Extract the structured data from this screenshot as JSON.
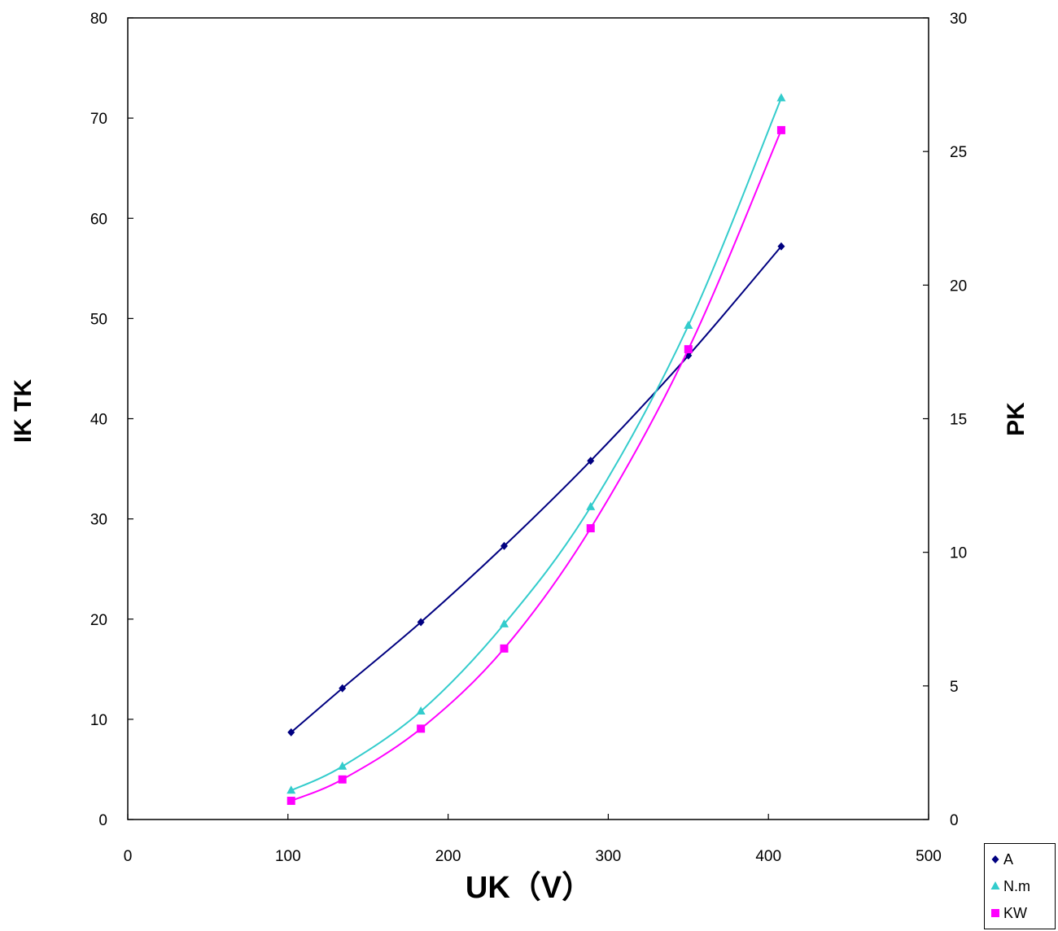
{
  "chart_data": {
    "type": "line",
    "xlabel": "UK（V）",
    "ylabel_left": "IK TK",
    "ylabel_right": "PK",
    "xlim": [
      0,
      500
    ],
    "xticks": [
      "0",
      "100",
      "200",
      "300",
      "400",
      "500"
    ],
    "ylim_left": [
      0,
      80
    ],
    "yticks_left": [
      "0",
      "10",
      "20",
      "30",
      "40",
      "50",
      "60",
      "70",
      "80"
    ],
    "ylim_right": [
      0,
      30
    ],
    "yticks_right": [
      "0",
      "5",
      "10",
      "15",
      "20",
      "25",
      "30"
    ],
    "grid": false,
    "legend_position": "bottom-right",
    "series": [
      {
        "name": "A",
        "axis": "left",
        "marker": "diamond",
        "color": "#000080",
        "x": [
          102,
          134,
          183,
          235,
          289,
          350,
          408
        ],
        "y": [
          8.7,
          13.1,
          19.7,
          27.3,
          35.8,
          46.3,
          57.2
        ]
      },
      {
        "name": "N.m",
        "axis": "left",
        "marker": "triangle",
        "color": "#33CCCC",
        "x": [
          102,
          134,
          183,
          235,
          289,
          350,
          408
        ],
        "y": [
          2.9,
          5.3,
          10.8,
          19.5,
          31.2,
          49.3,
          72.0
        ]
      },
      {
        "name": "KW",
        "axis": "right",
        "marker": "square",
        "color": "#FF00FF",
        "x": [
          102,
          134,
          183,
          235,
          289,
          350,
          408
        ],
        "y": [
          0.7,
          1.5,
          3.4,
          6.4,
          10.9,
          17.6,
          25.8
        ]
      }
    ]
  }
}
